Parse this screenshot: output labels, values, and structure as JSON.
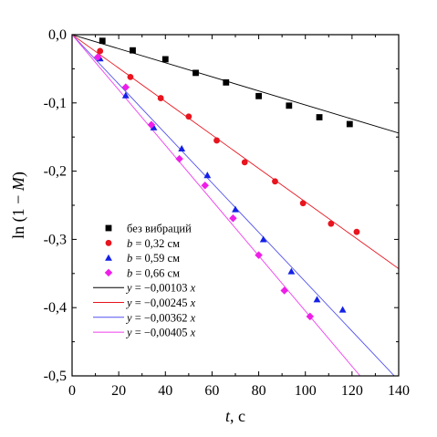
{
  "chart_data": {
    "type": "scatter",
    "xlabel": "t, с",
    "ylabel": "ln (1 − M)",
    "xlim": [
      0,
      140
    ],
    "ylim": [
      -0.5,
      0.0
    ],
    "x_ticks": [
      0,
      20,
      40,
      60,
      80,
      100,
      120,
      140
    ],
    "y_ticks": [
      0.0,
      -0.1,
      -0.2,
      -0.3,
      -0.4,
      -0.5
    ],
    "x_tick_labels": [
      "0",
      "20",
      "40",
      "60",
      "80",
      "100",
      "120",
      "140"
    ],
    "y_tick_labels": [
      "0,0",
      "-0,1",
      "-0,2",
      "-0,3",
      "-0,4",
      "-0,5"
    ],
    "grid": false,
    "legend_position": "bottom-left",
    "series": [
      {
        "name": "без вибраций",
        "marker": "square",
        "color": "#000000",
        "x": [
          13,
          26,
          40,
          53,
          66,
          80,
          93,
          106,
          119
        ],
        "y": [
          -0.009,
          -0.023,
          -0.036,
          -0.056,
          -0.07,
          -0.09,
          -0.104,
          -0.121,
          -0.131
        ]
      },
      {
        "name": "b = 0,32 см",
        "marker": "circle",
        "color": "#e8141e",
        "x": [
          12,
          25,
          38,
          50,
          62,
          74,
          87,
          99,
          111,
          122
        ],
        "y": [
          -0.024,
          -0.062,
          -0.093,
          -0.12,
          -0.155,
          -0.187,
          -0.215,
          -0.247,
          -0.277,
          -0.289
        ]
      },
      {
        "name": "b = 0,59 см",
        "marker": "triangle",
        "color": "#1420e6",
        "x": [
          12,
          23,
          35,
          47,
          58,
          70,
          82,
          94,
          105,
          116
        ],
        "y": [
          -0.035,
          -0.089,
          -0.136,
          -0.167,
          -0.206,
          -0.256,
          -0.3,
          -0.347,
          -0.388,
          -0.403
        ]
      },
      {
        "name": "b = 0,66 см",
        "marker": "diamond",
        "color": "#ee1ee8",
        "x": [
          11,
          23,
          34,
          46,
          57,
          69,
          80,
          91,
          102
        ],
        "y": [
          -0.033,
          -0.077,
          -0.132,
          -0.182,
          -0.221,
          -0.269,
          -0.323,
          -0.375,
          -0.413
        ]
      }
    ],
    "fits": [
      {
        "label": "y = −0,00103 x",
        "slope": -0.00103,
        "color": "#000000"
      },
      {
        "label": "y = −0,00245 x",
        "slope": -0.00245,
        "color": "#e8141e"
      },
      {
        "label": "y = −0,00362 x",
        "slope": -0.00362,
        "color": "#5050ee"
      },
      {
        "label": "y = −0,00405 x",
        "slope": -0.00405,
        "color": "#ee40ee"
      }
    ]
  }
}
